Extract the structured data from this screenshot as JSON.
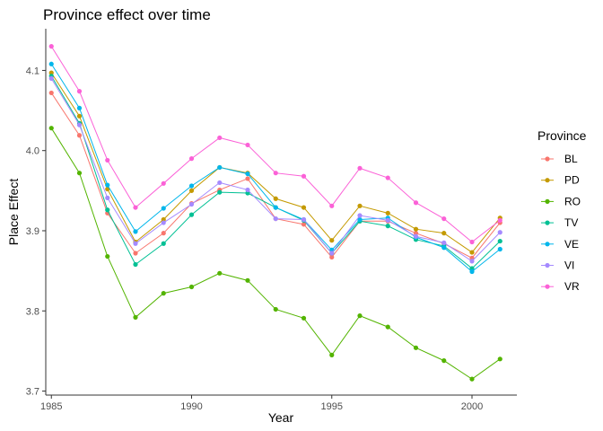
{
  "chart_data": {
    "type": "line",
    "title": "Province effect over time",
    "xlabel": "Year",
    "ylabel": "Place Effect",
    "xlim": [
      1984.8,
      2001.6
    ],
    "ylim": [
      3.695,
      4.152
    ],
    "xticks": [
      1985,
      1990,
      1995,
      2000
    ],
    "yticks": [
      3.7,
      3.8,
      3.9,
      4.0,
      4.1
    ],
    "xtick_labels": [
      "1985",
      "1990",
      "1995",
      "2000"
    ],
    "ytick_labels": [
      "3.7",
      "3.8",
      "3.9",
      "4.0",
      "4.1"
    ],
    "grid": false,
    "legend": {
      "title": "Province",
      "position": "right"
    },
    "x": [
      1985,
      1986,
      1987,
      1988,
      1989,
      1990,
      1991,
      1992,
      1993,
      1994,
      1995,
      1996,
      1997,
      1998,
      1999,
      2000,
      2001
    ],
    "series": [
      {
        "name": "BL",
        "color": "#F8766D",
        "values": [
          4.072,
          4.019,
          3.922,
          3.872,
          3.897,
          3.934,
          3.951,
          3.965,
          3.915,
          3.908,
          3.867,
          3.912,
          3.912,
          3.897,
          3.884,
          3.866,
          3.91
        ]
      },
      {
        "name": "PD",
        "color": "#C49A00",
        "values": [
          4.097,
          4.043,
          3.952,
          3.886,
          3.914,
          3.95,
          3.979,
          3.972,
          3.94,
          3.929,
          3.888,
          3.931,
          3.922,
          3.902,
          3.897,
          3.873,
          3.916
        ]
      },
      {
        "name": "RO",
        "color": "#53B400",
        "values": [
          4.028,
          3.972,
          3.868,
          3.792,
          3.822,
          3.83,
          3.847,
          3.838,
          3.802,
          3.791,
          3.745,
          3.794,
          3.78,
          3.754,
          3.738,
          3.715,
          3.74
        ]
      },
      {
        "name": "TV",
        "color": "#00C094",
        "values": [
          4.093,
          4.034,
          3.926,
          3.858,
          3.884,
          3.92,
          3.948,
          3.947,
          3.929,
          3.913,
          3.872,
          3.912,
          3.906,
          3.889,
          3.881,
          3.853,
          3.887
        ]
      },
      {
        "name": "VE",
        "color": "#00B6EB",
        "values": [
          4.108,
          4.053,
          3.957,
          3.899,
          3.928,
          3.956,
          3.979,
          3.971,
          3.929,
          3.914,
          3.876,
          3.914,
          3.916,
          3.892,
          3.879,
          3.849,
          3.877
        ]
      },
      {
        "name": "VI",
        "color": "#A58AFF",
        "values": [
          4.09,
          4.032,
          3.941,
          3.884,
          3.91,
          3.933,
          3.96,
          3.951,
          3.915,
          3.914,
          3.872,
          3.919,
          3.913,
          3.893,
          3.885,
          3.862,
          3.898
        ]
      },
      {
        "name": "VR",
        "color": "#FB61D7",
        "values": [
          4.13,
          4.074,
          3.988,
          3.929,
          3.959,
          3.99,
          4.016,
          4.007,
          3.972,
          3.968,
          3.931,
          3.978,
          3.966,
          3.935,
          3.915,
          3.886,
          3.913
        ]
      }
    ]
  }
}
